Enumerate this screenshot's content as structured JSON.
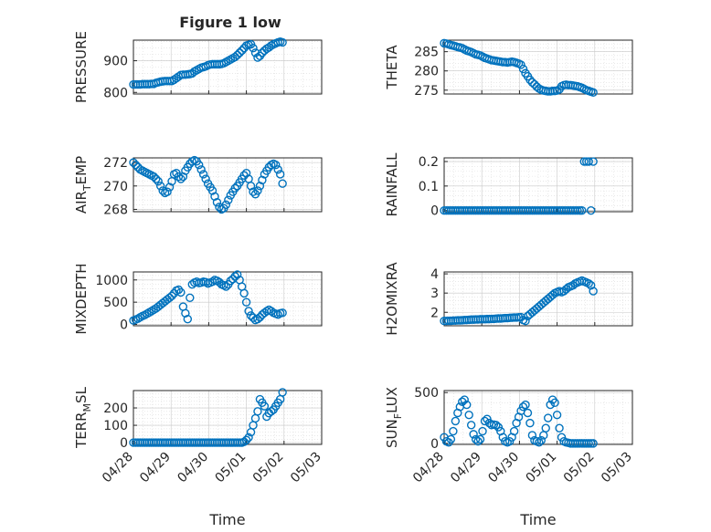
{
  "figure": {
    "title": "Figure 1 low",
    "marker_color": "#0072BD"
  },
  "chart_data": [
    {
      "type": "scatter",
      "title": "Figure 1 low",
      "ylabel": "PRESSURE",
      "ylim": [
        795,
        965
      ],
      "yticks": [
        800,
        900
      ],
      "x_range": [
        "04/28",
        "05/03"
      ],
      "grid": true,
      "points_note": "y vs time (day offsets not printed)",
      "x": [
        0.0,
        0.06,
        0.12,
        0.18,
        0.24,
        0.3,
        0.36,
        0.42,
        0.48,
        0.54,
        0.6,
        0.66,
        0.72,
        0.78,
        0.84,
        0.9,
        0.96,
        1.02,
        1.08,
        1.14,
        1.2,
        1.26,
        1.32,
        1.38,
        1.44,
        1.5,
        1.56,
        1.62,
        1.68,
        1.74,
        1.8,
        1.86,
        1.92,
        1.98,
        2.04,
        2.1,
        2.16,
        2.22,
        2.28,
        2.34,
        2.4,
        2.46,
        2.52,
        2.58,
        2.64,
        2.7,
        2.76,
        2.82,
        2.88,
        2.94,
        3.0,
        3.06,
        3.12,
        3.18,
        3.24,
        3.3,
        3.36,
        3.42,
        3.48,
        3.54,
        3.6,
        3.66,
        3.72,
        3.78,
        3.84,
        3.9,
        3.96
      ],
      "y": [
        825,
        825,
        825,
        825,
        826,
        826,
        826,
        826,
        827,
        827,
        830,
        832,
        834,
        835,
        836,
        836,
        836,
        836,
        840,
        845,
        850,
        855,
        856,
        856,
        857,
        858,
        860,
        866,
        870,
        874,
        878,
        880,
        882,
        886,
        888,
        889,
        889,
        889,
        889,
        890,
        892,
        896,
        900,
        904,
        908,
        912,
        918,
        925,
        932,
        940,
        948,
        950,
        952,
        940,
        925,
        910,
        915,
        925,
        932,
        938,
        942,
        948,
        952,
        955,
        958,
        960,
        958
      ]
    },
    {
      "type": "scatter",
      "title": "",
      "ylabel": "THETA",
      "ylim": [
        274,
        288
      ],
      "yticks": [
        275,
        280,
        285
      ],
      "x_range": [
        "04/28",
        "05/03"
      ],
      "grid": true,
      "x": [
        0.0,
        0.06,
        0.12,
        0.18,
        0.24,
        0.3,
        0.36,
        0.42,
        0.48,
        0.54,
        0.6,
        0.66,
        0.72,
        0.78,
        0.84,
        0.9,
        0.96,
        1.02,
        1.08,
        1.14,
        1.2,
        1.26,
        1.32,
        1.38,
        1.44,
        1.5,
        1.56,
        1.62,
        1.68,
        1.74,
        1.8,
        1.86,
        1.92,
        1.98,
        2.04,
        2.1,
        2.16,
        2.22,
        2.28,
        2.34,
        2.4,
        2.46,
        2.52,
        2.58,
        2.64,
        2.7,
        2.76,
        2.82,
        2.88,
        2.94,
        3.0,
        3.06,
        3.12,
        3.18,
        3.24,
        3.3,
        3.36,
        3.42,
        3.48,
        3.54,
        3.6,
        3.66,
        3.72,
        3.78,
        3.84,
        3.9,
        3.96
      ],
      "y": [
        287.2,
        287.1,
        286.9,
        286.7,
        286.6,
        286.4,
        286.2,
        286.1,
        285.9,
        285.6,
        285.3,
        285.1,
        284.9,
        284.6,
        284.3,
        284.2,
        284.0,
        283.7,
        283.4,
        283.2,
        283.0,
        282.8,
        282.7,
        282.6,
        282.5,
        282.4,
        282.3,
        282.3,
        282.2,
        282.3,
        282.4,
        282.3,
        282.1,
        281.9,
        281.6,
        280.5,
        279.4,
        278.6,
        277.7,
        277.0,
        276.5,
        275.9,
        275.4,
        275.1,
        274.9,
        274.8,
        274.7,
        274.7,
        274.8,
        274.8,
        274.9,
        275.2,
        276.0,
        276.3,
        276.4,
        276.3,
        276.3,
        276.2,
        276.1,
        276.0,
        275.8,
        275.6,
        275.3,
        275.0,
        274.8,
        274.6,
        274.4
      ]
    },
    {
      "type": "scatter",
      "title": "",
      "ylabel": "AIR_TEMP",
      "ylim": [
        267.8,
        272.4
      ],
      "yticks": [
        268,
        270,
        272
      ],
      "x_range": [
        "04/28",
        "05/03"
      ],
      "grid": true,
      "x": [
        0.0,
        0.06,
        0.12,
        0.18,
        0.24,
        0.3,
        0.36,
        0.42,
        0.48,
        0.54,
        0.6,
        0.66,
        0.72,
        0.78,
        0.84,
        0.9,
        0.96,
        1.02,
        1.08,
        1.14,
        1.2,
        1.26,
        1.32,
        1.38,
        1.44,
        1.5,
        1.56,
        1.62,
        1.68,
        1.74,
        1.8,
        1.86,
        1.92,
        1.98,
        2.04,
        2.1,
        2.16,
        2.22,
        2.28,
        2.34,
        2.4,
        2.46,
        2.52,
        2.58,
        2.64,
        2.7,
        2.76,
        2.82,
        2.88,
        2.94,
        3.0,
        3.06,
        3.12,
        3.18,
        3.24,
        3.3,
        3.36,
        3.42,
        3.48,
        3.54,
        3.6,
        3.66,
        3.72,
        3.78,
        3.84,
        3.9,
        3.96
      ],
      "y": [
        272.0,
        271.8,
        271.6,
        271.4,
        271.3,
        271.2,
        271.1,
        271.0,
        270.9,
        270.8,
        270.6,
        270.4,
        270.0,
        269.6,
        269.4,
        269.5,
        269.9,
        270.4,
        271.0,
        271.1,
        270.8,
        270.6,
        270.8,
        271.3,
        271.6,
        271.9,
        272.1,
        272.2,
        272.1,
        271.8,
        271.4,
        271.0,
        270.6,
        270.2,
        269.9,
        269.6,
        269.1,
        268.6,
        268.2,
        268.0,
        268.1,
        268.4,
        268.8,
        269.2,
        269.5,
        269.8,
        270.0,
        270.3,
        270.6,
        270.9,
        271.1,
        270.6,
        270.0,
        269.5,
        269.3,
        269.6,
        270.0,
        270.5,
        271.0,
        271.3,
        271.6,
        271.8,
        271.9,
        271.8,
        271.4,
        271.0,
        270.2
      ]
    },
    {
      "type": "scatter",
      "title": "",
      "ylabel": "RAINFALL",
      "ylim": [
        -0.005,
        0.215
      ],
      "yticks": [
        0,
        0.1,
        0.2
      ],
      "x_range": [
        "04/28",
        "05/03"
      ],
      "grid": true,
      "x": [
        0.0,
        0.06,
        0.12,
        0.18,
        0.24,
        0.3,
        0.36,
        0.42,
        0.48,
        0.54,
        0.6,
        0.66,
        0.72,
        0.78,
        0.84,
        0.9,
        0.96,
        1.02,
        1.08,
        1.14,
        1.2,
        1.26,
        1.32,
        1.38,
        1.44,
        1.5,
        1.56,
        1.62,
        1.68,
        1.74,
        1.8,
        1.86,
        1.92,
        1.98,
        2.04,
        2.1,
        2.16,
        2.22,
        2.28,
        2.34,
        2.4,
        2.46,
        2.52,
        2.58,
        2.64,
        2.7,
        2.76,
        2.82,
        2.88,
        2.94,
        3.0,
        3.06,
        3.12,
        3.18,
        3.24,
        3.3,
        3.36,
        3.42,
        3.48,
        3.54,
        3.6,
        3.66,
        3.72,
        3.78,
        3.84,
        3.9,
        3.96
      ],
      "y": [
        0,
        0,
        0,
        0,
        0,
        0,
        0,
        0,
        0,
        0,
        0,
        0,
        0,
        0,
        0,
        0,
        0,
        0,
        0,
        0,
        0,
        0,
        0,
        0,
        0,
        0,
        0,
        0,
        0,
        0,
        0,
        0,
        0,
        0,
        0,
        0,
        0,
        0,
        0,
        0,
        0,
        0,
        0,
        0,
        0,
        0,
        0,
        0,
        0,
        0,
        0,
        0,
        0,
        0,
        0,
        0,
        0,
        0,
        0,
        0,
        0,
        0,
        0.2,
        0.2,
        0.2,
        0,
        0.2
      ]
    },
    {
      "type": "scatter",
      "title": "",
      "ylabel": "MIXDEPTH",
      "ylim": [
        -30,
        1180
      ],
      "yticks": [
        0,
        500,
        1000
      ],
      "x_range": [
        "04/28",
        "05/03"
      ],
      "grid": true,
      "x": [
        0.0,
        0.06,
        0.12,
        0.18,
        0.24,
        0.3,
        0.36,
        0.42,
        0.48,
        0.54,
        0.6,
        0.66,
        0.72,
        0.78,
        0.84,
        0.9,
        0.96,
        1.02,
        1.08,
        1.14,
        1.2,
        1.26,
        1.32,
        1.38,
        1.44,
        1.5,
        1.56,
        1.62,
        1.68,
        1.74,
        1.8,
        1.86,
        1.92,
        1.98,
        2.04,
        2.1,
        2.16,
        2.22,
        2.28,
        2.34,
        2.4,
        2.46,
        2.52,
        2.58,
        2.64,
        2.7,
        2.76,
        2.82,
        2.88,
        2.94,
        3.0,
        3.06,
        3.12,
        3.18,
        3.24,
        3.3,
        3.36,
        3.42,
        3.48,
        3.54,
        3.6,
        3.66,
        3.72,
        3.78,
        3.84,
        3.9,
        3.96
      ],
      "y": [
        90,
        110,
        130,
        160,
        190,
        210,
        240,
        270,
        300,
        330,
        360,
        400,
        440,
        480,
        520,
        560,
        600,
        640,
        700,
        760,
        780,
        720,
        400,
        250,
        120,
        600,
        900,
        940,
        960,
        930,
        940,
        960,
        950,
        920,
        940,
        960,
        1000,
        980,
        950,
        900,
        880,
        850,
        900,
        980,
        1020,
        1080,
        1120,
        1000,
        850,
        700,
        500,
        300,
        200,
        150,
        100,
        120,
        160,
        220,
        260,
        300,
        330,
        300,
        260,
        240,
        220,
        250,
        260
      ]
    },
    {
      "type": "scatter",
      "title": "",
      "ylabel": "H2OMIXRA",
      "ylim": [
        1.3,
        4.1
      ],
      "yticks": [
        2,
        3,
        4
      ],
      "x_range": [
        "04/28",
        "05/03"
      ],
      "grid": true,
      "x": [
        0.0,
        0.06,
        0.12,
        0.18,
        0.24,
        0.3,
        0.36,
        0.42,
        0.48,
        0.54,
        0.6,
        0.66,
        0.72,
        0.78,
        0.84,
        0.9,
        0.96,
        1.02,
        1.08,
        1.14,
        1.2,
        1.26,
        1.32,
        1.38,
        1.44,
        1.5,
        1.56,
        1.62,
        1.68,
        1.74,
        1.8,
        1.86,
        1.92,
        1.98,
        2.04,
        2.1,
        2.16,
        2.22,
        2.28,
        2.34,
        2.4,
        2.46,
        2.52,
        2.58,
        2.64,
        2.7,
        2.76,
        2.82,
        2.88,
        2.94,
        3.0,
        3.06,
        3.12,
        3.18,
        3.24,
        3.3,
        3.36,
        3.42,
        3.48,
        3.54,
        3.6,
        3.66,
        3.72,
        3.78,
        3.84,
        3.9,
        3.96
      ],
      "y": [
        1.55,
        1.55,
        1.56,
        1.56,
        1.57,
        1.57,
        1.58,
        1.58,
        1.59,
        1.6,
        1.6,
        1.61,
        1.62,
        1.62,
        1.63,
        1.63,
        1.64,
        1.64,
        1.64,
        1.65,
        1.65,
        1.66,
        1.66,
        1.67,
        1.68,
        1.68,
        1.69,
        1.7,
        1.7,
        1.71,
        1.72,
        1.73,
        1.73,
        1.74,
        1.75,
        1.6,
        1.55,
        1.8,
        1.9,
        2.0,
        2.1,
        2.2,
        2.3,
        2.4,
        2.5,
        2.6,
        2.7,
        2.8,
        2.9,
        3.0,
        3.05,
        3.1,
        3.05,
        3.1,
        3.2,
        3.3,
        3.35,
        3.4,
        3.5,
        3.55,
        3.6,
        3.65,
        3.6,
        3.55,
        3.5,
        3.4,
        3.1
      ]
    },
    {
      "type": "scatter",
      "title": "",
      "ylabel": "TERR_MSL",
      "ylim": [
        -10,
        300
      ],
      "yticks": [
        0,
        100,
        200
      ],
      "x_range": [
        "04/28",
        "05/03"
      ],
      "grid": true,
      "x": [
        0.0,
        0.06,
        0.12,
        0.18,
        0.24,
        0.3,
        0.36,
        0.42,
        0.48,
        0.54,
        0.6,
        0.66,
        0.72,
        0.78,
        0.84,
        0.9,
        0.96,
        1.02,
        1.08,
        1.14,
        1.2,
        1.26,
        1.32,
        1.38,
        1.44,
        1.5,
        1.56,
        1.62,
        1.68,
        1.74,
        1.8,
        1.86,
        1.92,
        1.98,
        2.04,
        2.1,
        2.16,
        2.22,
        2.28,
        2.34,
        2.4,
        2.46,
        2.52,
        2.58,
        2.64,
        2.7,
        2.76,
        2.82,
        2.88,
        2.94,
        3.0,
        3.06,
        3.12,
        3.18,
        3.24,
        3.3,
        3.36,
        3.42,
        3.48,
        3.54,
        3.6,
        3.66,
        3.72,
        3.78,
        3.84,
        3.9,
        3.96
      ],
      "y": [
        0,
        0,
        0,
        0,
        0,
        0,
        0,
        0,
        0,
        0,
        0,
        0,
        0,
        0,
        0,
        0,
        0,
        0,
        0,
        0,
        0,
        0,
        0,
        0,
        0,
        0,
        0,
        0,
        0,
        0,
        0,
        0,
        0,
        0,
        0,
        0,
        0,
        0,
        0,
        0,
        0,
        0,
        0,
        0,
        0,
        0,
        0,
        0,
        0,
        5,
        15,
        30,
        60,
        100,
        140,
        180,
        250,
        230,
        210,
        150,
        170,
        180,
        190,
        210,
        230,
        250,
        290
      ]
    },
    {
      "type": "scatter",
      "title": "",
      "ylabel": "SUN_FLUX",
      "ylim": [
        -10,
        520
      ],
      "yticks": [
        0,
        500
      ],
      "x_range": [
        "04/28",
        "05/03"
      ],
      "grid": true,
      "x": [
        0.0,
        0.06,
        0.12,
        0.18,
        0.24,
        0.3,
        0.36,
        0.42,
        0.48,
        0.54,
        0.6,
        0.66,
        0.72,
        0.78,
        0.84,
        0.9,
        0.96,
        1.02,
        1.08,
        1.14,
        1.2,
        1.26,
        1.32,
        1.38,
        1.44,
        1.5,
        1.56,
        1.62,
        1.68,
        1.74,
        1.8,
        1.86,
        1.92,
        1.98,
        2.04,
        2.1,
        2.16,
        2.22,
        2.28,
        2.34,
        2.4,
        2.46,
        2.52,
        2.58,
        2.64,
        2.7,
        2.76,
        2.82,
        2.88,
        2.94,
        3.0,
        3.06,
        3.12,
        3.18,
        3.24,
        3.3,
        3.36,
        3.42,
        3.48,
        3.54,
        3.6,
        3.66,
        3.72,
        3.78,
        3.84,
        3.9,
        3.96
      ],
      "y": [
        60,
        20,
        10,
        40,
        120,
        220,
        300,
        360,
        410,
        430,
        380,
        280,
        180,
        90,
        40,
        20,
        40,
        120,
        220,
        240,
        200,
        180,
        185,
        180,
        160,
        120,
        60,
        20,
        10,
        20,
        60,
        120,
        200,
        260,
        320,
        360,
        380,
        300,
        200,
        80,
        30,
        20,
        10,
        30,
        80,
        150,
        250,
        380,
        430,
        400,
        280,
        150,
        60,
        20,
        10,
        5,
        0,
        0,
        0,
        0,
        0,
        0,
        0,
        0,
        0,
        0,
        0
      ]
    }
  ],
  "axes_labels": {
    "xticks": [
      "04/28",
      "04/29",
      "04/30",
      "05/01",
      "05/02",
      "05/03"
    ],
    "xlabel_left": "Time",
    "xlabel_right": "Time"
  },
  "ylabel_parts": {
    "air_temp": {
      "main": "AIR",
      "sub": "T",
      "rest": "EMP"
    },
    "terr_msl": {
      "main": "TERR",
      "sub": "M",
      "rest": "SL"
    },
    "sun_flux": {
      "main": "SUN",
      "sub": "F",
      "rest": "LUX"
    }
  }
}
